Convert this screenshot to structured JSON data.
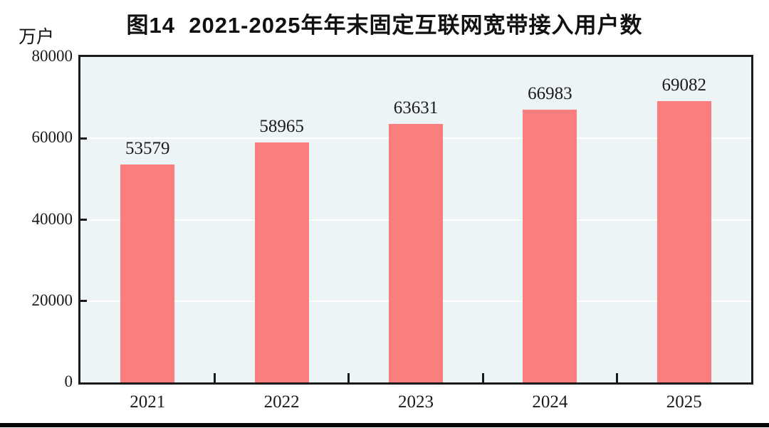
{
  "figure": {
    "title": "图14  2021-2025年年末固定互联网宽带接入用户数",
    "unit_label": "万户"
  },
  "chart_data": {
    "type": "bar",
    "title": "图14 2021-2025年年末固定互联网宽带接入用户数",
    "ylabel": "万户",
    "categories": [
      "2021",
      "2022",
      "2023",
      "2024",
      "2025"
    ],
    "values": [
      53579,
      58965,
      63631,
      66983,
      69082
    ],
    "data_labels": [
      "53579",
      "58965",
      "63631",
      "66983",
      "69082"
    ],
    "ylim": [
      0,
      80000
    ],
    "yticks": [
      0,
      20000,
      40000,
      60000,
      80000
    ],
    "ytick_labels": [
      "0",
      "20000",
      "40000",
      "60000",
      "80000"
    ],
    "grid": true,
    "legend": "none",
    "colors": {
      "bar": "#FB7E7E",
      "plot_background": "#EDF4F6",
      "gridline": "#FFFFFF",
      "axis": "#1A1A1A",
      "text": "#111111",
      "page_background": "#FFFFFF",
      "bottom_rule": "#060606"
    }
  }
}
